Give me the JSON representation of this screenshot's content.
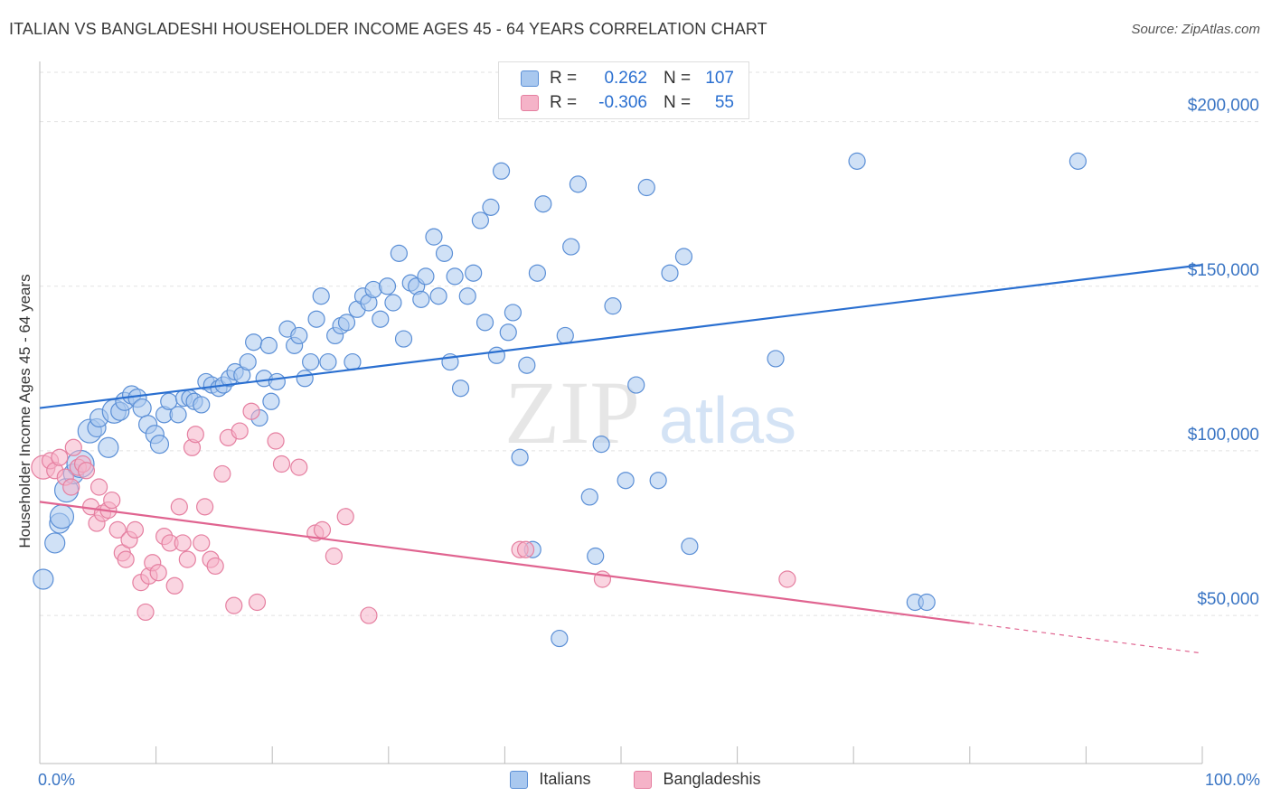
{
  "title": "ITALIAN VS BANGLADESHI HOUSEHOLDER INCOME AGES 45 - 64 YEARS CORRELATION CHART",
  "source": "Source: ZipAtlas.com",
  "watermark": {
    "zip": "ZIP",
    "atlas": "atlas"
  },
  "legend": {
    "rows": [
      {
        "r_label": "R =",
        "r_value": "0.262",
        "n_label": "N =",
        "n_value": "107"
      },
      {
        "r_label": "R =",
        "r_value": "-0.306",
        "n_label": "N =",
        "n_value": "55"
      }
    ]
  },
  "colors": {
    "italians_fill": "#a9c8ef",
    "italians_stroke": "#5b8fd6",
    "italians_line": "#2a6fd0",
    "bangladeshis_fill": "#f5b3c8",
    "bangladeshis_stroke": "#e57fa0",
    "bangladeshis_line": "#e06490",
    "tick_label": "#3a75c4",
    "grid": "#e2e2e2"
  },
  "chart_data": {
    "type": "scatter",
    "title": "ITALIAN VS BANGLADESHI HOUSEHOLDER INCOME AGES 45 - 64 YEARS CORRELATION CHART",
    "xlabel": "",
    "ylabel": "Householder Income Ages 45 - 64 years",
    "xlim": [
      0,
      100
    ],
    "ylim": [
      5000,
      215000
    ],
    "x_tick_labels": [
      "0.0%",
      "100.0%"
    ],
    "y_ticks": [
      50000,
      100000,
      150000,
      200000
    ],
    "y_tick_labels": [
      "$50,000",
      "$100,000",
      "$150,000",
      "$200,000"
    ],
    "grid": true,
    "legend_position": "top-center",
    "series": [
      {
        "name": "Italians",
        "r": 0.262,
        "n": 107,
        "trend": {
          "x0": 0,
          "y0": 113000,
          "x1": 100,
          "y1": 156500,
          "solid_until": 100
        },
        "points": [
          [
            0.3,
            61000,
            11
          ],
          [
            1.3,
            72000,
            11
          ],
          [
            1.7,
            78000,
            11
          ],
          [
            1.9,
            80000,
            13
          ],
          [
            2.3,
            88000,
            13
          ],
          [
            2.9,
            93000,
            11
          ],
          [
            3.5,
            96000,
            15
          ],
          [
            4.3,
            106000,
            13
          ],
          [
            4.9,
            107000,
            10
          ],
          [
            5.1,
            110000,
            10
          ],
          [
            5.9,
            101000,
            11
          ],
          [
            6.4,
            112000,
            13
          ],
          [
            6.9,
            112000,
            10
          ],
          [
            7.3,
            115000,
            10
          ],
          [
            7.9,
            117000,
            10
          ],
          [
            8.4,
            116000,
            10
          ],
          [
            8.8,
            113000,
            10
          ],
          [
            9.3,
            108000,
            10
          ],
          [
            9.9,
            105000,
            10
          ],
          [
            10.3,
            102000,
            10
          ],
          [
            10.7,
            111000,
            9
          ],
          [
            11.1,
            115000,
            9
          ],
          [
            11.9,
            111000,
            9
          ],
          [
            12.4,
            116000,
            9
          ],
          [
            12.9,
            116000,
            9
          ],
          [
            13.3,
            115000,
            9
          ],
          [
            13.9,
            114000,
            9
          ],
          [
            14.3,
            121000,
            9
          ],
          [
            14.8,
            120000,
            9
          ],
          [
            15.4,
            119000,
            9
          ],
          [
            15.8,
            120000,
            9
          ],
          [
            16.3,
            122000,
            9
          ],
          [
            16.8,
            124000,
            9
          ],
          [
            17.4,
            123000,
            9
          ],
          [
            17.9,
            127000,
            9
          ],
          [
            18.4,
            133000,
            9
          ],
          [
            18.9,
            110000,
            9
          ],
          [
            19.3,
            122000,
            9
          ],
          [
            19.7,
            132000,
            9
          ],
          [
            19.9,
            115000,
            9
          ],
          [
            20.4,
            121000,
            9
          ],
          [
            21.3,
            137000,
            9
          ],
          [
            21.9,
            132000,
            9
          ],
          [
            22.3,
            135000,
            9
          ],
          [
            22.8,
            122000,
            9
          ],
          [
            23.3,
            127000,
            9
          ],
          [
            23.8,
            140000,
            9
          ],
          [
            24.2,
            147000,
            9
          ],
          [
            24.8,
            127000,
            9
          ],
          [
            25.4,
            135000,
            9
          ],
          [
            25.9,
            138000,
            9
          ],
          [
            26.4,
            139000,
            9
          ],
          [
            26.9,
            127000,
            9
          ],
          [
            27.3,
            143000,
            9
          ],
          [
            27.8,
            147000,
            9
          ],
          [
            28.3,
            145000,
            9
          ],
          [
            28.7,
            149000,
            9
          ],
          [
            29.3,
            140000,
            9
          ],
          [
            29.9,
            150000,
            9
          ],
          [
            30.4,
            145000,
            9
          ],
          [
            30.9,
            160000,
            9
          ],
          [
            31.3,
            134000,
            9
          ],
          [
            31.9,
            151000,
            9
          ],
          [
            32.4,
            150000,
            9
          ],
          [
            32.8,
            146000,
            9
          ],
          [
            33.2,
            153000,
            9
          ],
          [
            33.9,
            165000,
            9
          ],
          [
            34.3,
            147000,
            9
          ],
          [
            34.8,
            160000,
            9
          ],
          [
            35.3,
            127000,
            9
          ],
          [
            35.7,
            153000,
            9
          ],
          [
            36.2,
            119000,
            9
          ],
          [
            36.8,
            147000,
            9
          ],
          [
            37.3,
            154000,
            9
          ],
          [
            37.9,
            170000,
            9
          ],
          [
            38.3,
            139000,
            9
          ],
          [
            38.8,
            174000,
            9
          ],
          [
            39.3,
            129000,
            9
          ],
          [
            39.7,
            185000,
            9
          ],
          [
            40.3,
            136000,
            9
          ],
          [
            40.7,
            142000,
            9
          ],
          [
            41.3,
            98000,
            9
          ],
          [
            41.9,
            126000,
            9
          ],
          [
            42.4,
            70000,
            9
          ],
          [
            42.8,
            154000,
            9
          ],
          [
            43.3,
            175000,
            9
          ],
          [
            44.7,
            43000,
            9
          ],
          [
            45.2,
            135000,
            9
          ],
          [
            45.7,
            162000,
            9
          ],
          [
            46.3,
            181000,
            9
          ],
          [
            47.3,
            86000,
            9
          ],
          [
            47.8,
            68000,
            9
          ],
          [
            48.3,
            102000,
            9
          ],
          [
            49.3,
            144000,
            9
          ],
          [
            50.4,
            91000,
            9
          ],
          [
            51.3,
            120000,
            9
          ],
          [
            52.2,
            180000,
            9
          ],
          [
            53.2,
            91000,
            9
          ],
          [
            54.2,
            154000,
            9
          ],
          [
            55.4,
            159000,
            9
          ],
          [
            55.9,
            71000,
            9
          ],
          [
            63.3,
            128000,
            9
          ],
          [
            70.3,
            188000,
            9
          ],
          [
            75.3,
            54000,
            9
          ],
          [
            76.3,
            54000,
            9
          ],
          [
            89.3,
            188000,
            9
          ]
        ]
      },
      {
        "name": "Bangladeshis",
        "r": -0.306,
        "n": 55,
        "trend": {
          "x0": 0,
          "y0": 84500,
          "x1": 100,
          "y1": 38500,
          "solid_until": 80
        },
        "points": [
          [
            0.3,
            95000,
            13
          ],
          [
            0.9,
            97000,
            9
          ],
          [
            1.3,
            94000,
            9
          ],
          [
            1.7,
            98000,
            9
          ],
          [
            2.2,
            92000,
            9
          ],
          [
            2.7,
            89000,
            9
          ],
          [
            2.9,
            101000,
            9
          ],
          [
            3.3,
            95000,
            9
          ],
          [
            3.7,
            96000,
            9
          ],
          [
            4.0,
            94000,
            9
          ],
          [
            4.4,
            83000,
            9
          ],
          [
            4.9,
            78000,
            9
          ],
          [
            5.1,
            89000,
            9
          ],
          [
            5.4,
            81000,
            9
          ],
          [
            5.9,
            82000,
            9
          ],
          [
            6.2,
            85000,
            9
          ],
          [
            6.7,
            76000,
            9
          ],
          [
            7.1,
            69000,
            9
          ],
          [
            7.4,
            67000,
            9
          ],
          [
            7.7,
            73000,
            9
          ],
          [
            8.2,
            76000,
            9
          ],
          [
            8.7,
            60000,
            9
          ],
          [
            9.1,
            51000,
            9
          ],
          [
            9.4,
            62000,
            9
          ],
          [
            9.7,
            66000,
            9
          ],
          [
            10.2,
            63000,
            9
          ],
          [
            10.7,
            74000,
            9
          ],
          [
            11.2,
            72000,
            9
          ],
          [
            11.6,
            59000,
            9
          ],
          [
            12.0,
            83000,
            9
          ],
          [
            12.3,
            72000,
            9
          ],
          [
            12.7,
            67000,
            9
          ],
          [
            13.1,
            101000,
            9
          ],
          [
            13.4,
            105000,
            9
          ],
          [
            13.9,
            72000,
            9
          ],
          [
            14.2,
            83000,
            9
          ],
          [
            14.7,
            67000,
            9
          ],
          [
            15.1,
            65000,
            9
          ],
          [
            15.7,
            93000,
            9
          ],
          [
            16.2,
            104000,
            9
          ],
          [
            16.7,
            53000,
            9
          ],
          [
            17.2,
            106000,
            9
          ],
          [
            18.2,
            112000,
            9
          ],
          [
            18.7,
            54000,
            9
          ],
          [
            20.3,
            103000,
            9
          ],
          [
            20.8,
            96000,
            9
          ],
          [
            22.3,
            95000,
            9
          ],
          [
            23.7,
            75000,
            9
          ],
          [
            24.3,
            76000,
            9
          ],
          [
            25.3,
            68000,
            9
          ],
          [
            26.3,
            80000,
            9
          ],
          [
            28.3,
            50000,
            9
          ],
          [
            41.3,
            70000,
            9
          ],
          [
            41.8,
            70000,
            9
          ],
          [
            48.4,
            61000,
            9
          ],
          [
            64.3,
            61000,
            9
          ]
        ]
      }
    ]
  }
}
